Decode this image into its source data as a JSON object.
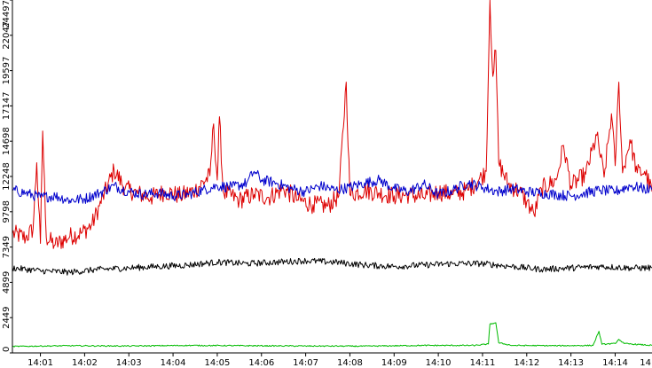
{
  "chart_data": {
    "type": "line",
    "title": "",
    "xlabel": "",
    "ylabel": "",
    "ylim": [
      0,
      24497
    ],
    "xlim": [
      "14:00:22",
      "14:14:50"
    ],
    "grid": false,
    "legend": "none",
    "x_ticks": [
      "14:01",
      "14:02",
      "14:03",
      "14:04",
      "14:05",
      "14:06",
      "14:07",
      "14:08",
      "14:09",
      "14:10",
      "14:11",
      "14:12",
      "14:13",
      "14:14",
      "14"
    ],
    "y_ticks": [
      "0",
      "2449",
      "4899",
      "7349",
      "9798",
      "12248",
      "14698",
      "17147",
      "19597",
      "22047",
      "24497"
    ],
    "series": [
      {
        "color": "#dd0000",
        "points": [
          [
            "14:00:22",
            8300
          ],
          [
            "14:00:40",
            8000
          ],
          [
            "14:00:50",
            8600
          ],
          [
            "14:00:55",
            13200
          ],
          [
            "14:01:00",
            7600
          ],
          [
            "14:01:03",
            15400
          ],
          [
            "14:01:08",
            8000
          ],
          [
            "14:01:20",
            7500
          ],
          [
            "14:01:40",
            8100
          ],
          [
            "14:01:55",
            8300
          ],
          [
            "14:02:10",
            8900
          ],
          [
            "14:02:20",
            10200
          ],
          [
            "14:02:40",
            12700
          ],
          [
            "14:02:55",
            11400
          ],
          [
            "14:03:10",
            11100
          ],
          [
            "14:03:30",
            10800
          ],
          [
            "14:03:50",
            11200
          ],
          [
            "14:04:10",
            10900
          ],
          [
            "14:04:30",
            11300
          ],
          [
            "14:04:50",
            12300
          ],
          [
            "14:04:55",
            15900
          ],
          [
            "14:05:00",
            12000
          ],
          [
            "14:05:03",
            16400
          ],
          [
            "14:05:08",
            11200
          ],
          [
            "14:05:30",
            10600
          ],
          [
            "14:05:50",
            11000
          ],
          [
            "14:06:10",
            10800
          ],
          [
            "14:06:30",
            11400
          ],
          [
            "14:06:50",
            10600
          ],
          [
            "14:07:10",
            10300
          ],
          [
            "14:07:30",
            10200
          ],
          [
            "14:07:45",
            10900
          ],
          [
            "14:07:55",
            18800
          ],
          [
            "14:08:00",
            11000
          ],
          [
            "14:08:20",
            11300
          ],
          [
            "14:08:40",
            11100
          ],
          [
            "14:09:00",
            10900
          ],
          [
            "14:09:20",
            11000
          ],
          [
            "14:09:40",
            10800
          ],
          [
            "14:10:00",
            11200
          ],
          [
            "14:10:20",
            11000
          ],
          [
            "14:10:40",
            11300
          ],
          [
            "14:10:55",
            12000
          ],
          [
            "14:11:05",
            12600
          ],
          [
            "14:11:10",
            24500
          ],
          [
            "14:11:14",
            19200
          ],
          [
            "14:11:18",
            21000
          ],
          [
            "14:11:22",
            13200
          ],
          [
            "14:11:35",
            11700
          ],
          [
            "14:11:50",
            11200
          ],
          [
            "14:12:00",
            10500
          ],
          [
            "14:12:10",
            9600
          ],
          [
            "14:12:20",
            11400
          ],
          [
            "14:12:40",
            12000
          ],
          [
            "14:12:50",
            14400
          ],
          [
            "14:13:00",
            11600
          ],
          [
            "14:13:20",
            12400
          ],
          [
            "14:13:35",
            15100
          ],
          [
            "14:13:45",
            12200
          ],
          [
            "14:13:55",
            16600
          ],
          [
            "14:14:00",
            13000
          ],
          [
            "14:14:05",
            18800
          ],
          [
            "14:14:10",
            12500
          ],
          [
            "14:14:20",
            14800
          ],
          [
            "14:14:30",
            12500
          ],
          [
            "14:14:40",
            12600
          ],
          [
            "14:14:50",
            11200
          ]
        ]
      },
      {
        "color": "#0000cc",
        "points": [
          [
            "14:00:22",
            11300
          ],
          [
            "14:00:40",
            11100
          ],
          [
            "14:01:00",
            10800
          ],
          [
            "14:01:20",
            10900
          ],
          [
            "14:01:40",
            10600
          ],
          [
            "14:02:00",
            10700
          ],
          [
            "14:02:20",
            11100
          ],
          [
            "14:02:40",
            11600
          ],
          [
            "14:03:00",
            11200
          ],
          [
            "14:03:20",
            11000
          ],
          [
            "14:03:40",
            11100
          ],
          [
            "14:04:00",
            10900
          ],
          [
            "14:04:20",
            11000
          ],
          [
            "14:04:40",
            11300
          ],
          [
            "14:05:00",
            11600
          ],
          [
            "14:05:20",
            11500
          ],
          [
            "14:05:40",
            11800
          ],
          [
            "14:05:50",
            12600
          ],
          [
            "14:06:00",
            12000
          ],
          [
            "14:06:20",
            11800
          ],
          [
            "14:06:40",
            11400
          ],
          [
            "14:07:00",
            11200
          ],
          [
            "14:07:20",
            11600
          ],
          [
            "14:07:40",
            11300
          ],
          [
            "14:08:00",
            11500
          ],
          [
            "14:08:20",
            11800
          ],
          [
            "14:08:40",
            12000
          ],
          [
            "14:09:00",
            11400
          ],
          [
            "14:09:20",
            11200
          ],
          [
            "14:09:40",
            11700
          ],
          [
            "14:10:00",
            11000
          ],
          [
            "14:10:20",
            11300
          ],
          [
            "14:10:40",
            11800
          ],
          [
            "14:11:00",
            11500
          ],
          [
            "14:11:20",
            11200
          ],
          [
            "14:11:40",
            11400
          ],
          [
            "14:12:00",
            11200
          ],
          [
            "14:12:20",
            11100
          ],
          [
            "14:12:40",
            11000
          ],
          [
            "14:13:00",
            10900
          ],
          [
            "14:13:20",
            11100
          ],
          [
            "14:13:40",
            11300
          ],
          [
            "14:14:00",
            11200
          ],
          [
            "14:14:20",
            11600
          ],
          [
            "14:14:40",
            11400
          ],
          [
            "14:14:50",
            11300
          ]
        ]
      },
      {
        "color": "#000000",
        "points": [
          [
            "14:00:22",
            5900
          ],
          [
            "14:01:00",
            5700
          ],
          [
            "14:01:40",
            5600
          ],
          [
            "14:02:20",
            5800
          ],
          [
            "14:03:00",
            5900
          ],
          [
            "14:03:40",
            6000
          ],
          [
            "14:04:20",
            6100
          ],
          [
            "14:05:00",
            6300
          ],
          [
            "14:05:40",
            6200
          ],
          [
            "14:06:20",
            6300
          ],
          [
            "14:07:00",
            6400
          ],
          [
            "14:07:40",
            6300
          ],
          [
            "14:08:20",
            6100
          ],
          [
            "14:09:00",
            6000
          ],
          [
            "14:09:40",
            6100
          ],
          [
            "14:10:20",
            6200
          ],
          [
            "14:11:00",
            6200
          ],
          [
            "14:11:40",
            6000
          ],
          [
            "14:12:20",
            5800
          ],
          [
            "14:13:00",
            5900
          ],
          [
            "14:13:40",
            6000
          ],
          [
            "14:14:20",
            5900
          ],
          [
            "14:14:50",
            5900
          ]
        ]
      },
      {
        "color": "#00bb00",
        "points": [
          [
            "14:00:22",
            450
          ],
          [
            "14:01:40",
            500
          ],
          [
            "14:03:00",
            480
          ],
          [
            "14:04:20",
            520
          ],
          [
            "14:05:40",
            500
          ],
          [
            "14:07:00",
            480
          ],
          [
            "14:08:20",
            470
          ],
          [
            "14:09:40",
            520
          ],
          [
            "14:10:50",
            520
          ],
          [
            "14:11:08",
            620
          ],
          [
            "14:11:10",
            2000
          ],
          [
            "14:11:18",
            2100
          ],
          [
            "14:11:22",
            700
          ],
          [
            "14:11:40",
            520
          ],
          [
            "14:12:40",
            500
          ],
          [
            "14:13:30",
            520
          ],
          [
            "14:13:38",
            1500
          ],
          [
            "14:13:42",
            600
          ],
          [
            "14:14:00",
            650
          ],
          [
            "14:14:05",
            950
          ],
          [
            "14:14:12",
            650
          ],
          [
            "14:14:50",
            520
          ]
        ]
      }
    ]
  }
}
